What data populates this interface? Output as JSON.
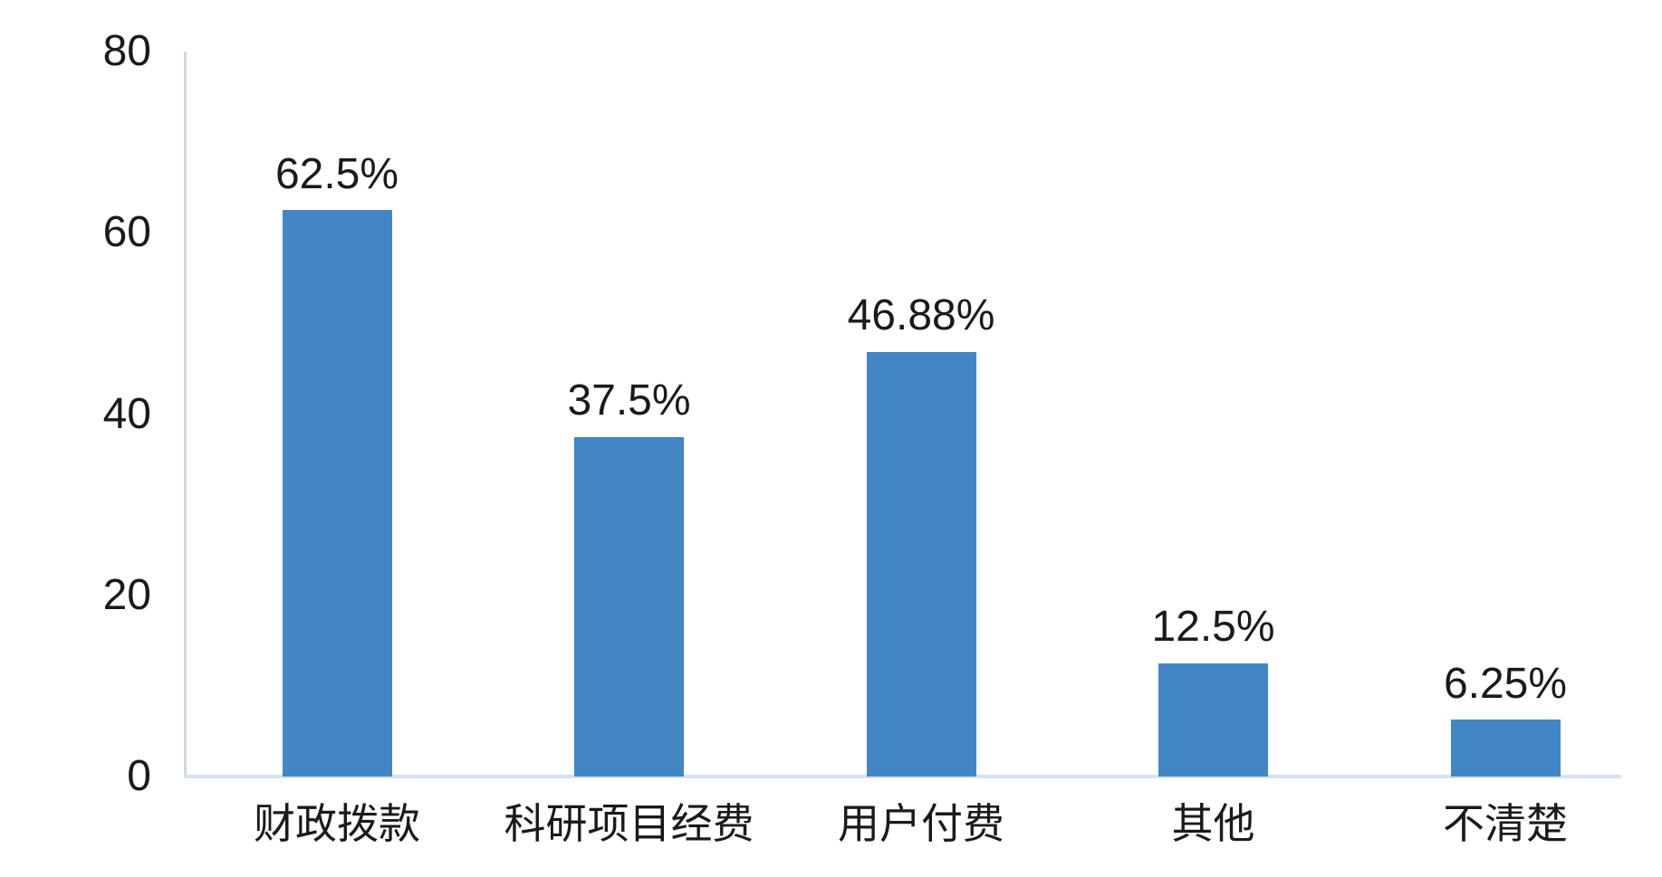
{
  "chart_data": {
    "type": "bar",
    "title": "",
    "xlabel": "",
    "ylabel": "",
    "categories": [
      "财政拨款",
      "科研项目经费",
      "用户付费",
      "其他",
      "不清楚"
    ],
    "values": [
      62.5,
      37.5,
      46.88,
      12.5,
      6.25
    ],
    "data_labels": [
      "62.5%",
      "37.5%",
      "46.88%",
      "12.5%",
      "6.25%"
    ],
    "y_ticks": [
      0,
      20,
      40,
      60,
      80
    ],
    "ylim": [
      0,
      80
    ],
    "grid": "off",
    "legend": "none",
    "colors": {
      "bar": "#4286C5",
      "y_axis_line": "#CBD9EA",
      "x_axis_line": "#D7E2F0",
      "text": "#1A1A1A",
      "background": "#FFFFFF"
    }
  }
}
